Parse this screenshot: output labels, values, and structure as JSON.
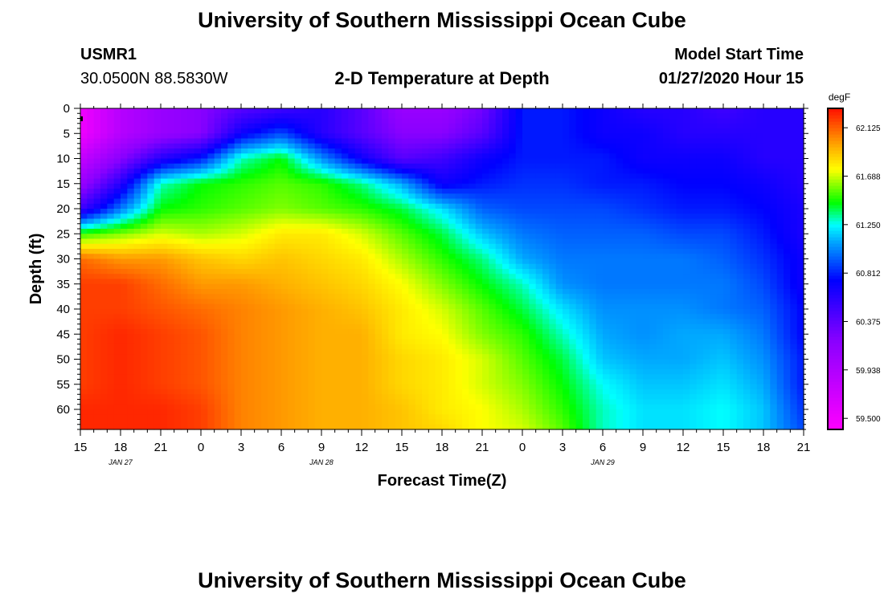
{
  "page": {
    "title_top": "University of Southern Mississippi Ocean Cube",
    "title_bottom": "University of Southern Mississippi Ocean Cube",
    "station": "USMR1",
    "location": "30.0500N 88.5830W",
    "product": "2-D Temperature at Depth",
    "model_start_label": "Model Start Time",
    "model_start_value": "01/27/2020 Hour 15"
  },
  "chart_data": {
    "type": "heatmap",
    "title": "2-D Temperature at Depth",
    "xlabel": "Forecast Time(Z)",
    "ylabel": "Depth (ft)",
    "x_unit": "hours from 01/27/2020 15Z",
    "x_ticks": [
      "15",
      "18",
      "21",
      "0",
      "3",
      "6",
      "9",
      "12",
      "15",
      "18",
      "21",
      "0",
      "3",
      "6",
      "9",
      "12",
      "15",
      "18",
      "21"
    ],
    "date_labels": [
      {
        "label": "JAN 27",
        "at_tick": 1
      },
      {
        "label": "JAN 28",
        "at_tick": 6
      },
      {
        "label": "JAN 29",
        "at_tick": 13
      }
    ],
    "xlim": [
      0,
      54
    ],
    "y_ticks": [
      0,
      5,
      10,
      15,
      20,
      25,
      30,
      35,
      40,
      45,
      50,
      55,
      60
    ],
    "ylim": [
      0,
      64
    ],
    "colorbar": {
      "unit": "degF",
      "ticks": [
        62.125,
        61.688,
        61.25,
        60.812,
        60.375,
        59.938,
        59.5
      ],
      "tick_labels": [
        "62.125",
        "61.688",
        "61.250",
        "60.812",
        "60.375",
        "59.938",
        "59.500"
      ],
      "range": [
        59.4,
        62.3
      ],
      "stops": [
        {
          "v": 59.4,
          "color": "#ff00ff"
        },
        {
          "v": 60.2,
          "color": "#8a00ff"
        },
        {
          "v": 60.75,
          "color": "#0000ff"
        },
        {
          "v": 61.1,
          "color": "#00a8ff"
        },
        {
          "v": 61.25,
          "color": "#00ffff"
        },
        {
          "v": 61.45,
          "color": "#00ff00"
        },
        {
          "v": 61.75,
          "color": "#ffff00"
        },
        {
          "v": 61.95,
          "color": "#ffb000"
        },
        {
          "v": 62.3,
          "color": "#ff1000"
        }
      ]
    },
    "field": {
      "x_nodes": [
        0,
        3,
        6,
        9,
        12,
        15,
        18,
        21,
        24,
        27,
        30,
        33,
        36,
        39,
        42,
        45,
        48,
        51,
        54
      ],
      "depth_nodes": [
        0,
        5,
        10,
        15,
        20,
        25,
        30,
        35,
        40,
        45,
        50,
        55,
        60,
        64
      ],
      "temperature_degF": [
        [
          59.5,
          59.9,
          60.1,
          60.2,
          60.4,
          60.5,
          60.6,
          60.4,
          60.1,
          60.1,
          60.3,
          60.8,
          60.8,
          60.7,
          60.6,
          60.6,
          60.5,
          60.6,
          60.6
        ],
        [
          59.5,
          59.9,
          60.1,
          60.2,
          60.7,
          60.9,
          60.6,
          60.4,
          60.2,
          60.2,
          60.4,
          60.8,
          60.8,
          60.7,
          60.7,
          60.6,
          60.6,
          60.6,
          60.6
        ],
        [
          59.8,
          60.2,
          60.6,
          60.8,
          61.3,
          61.45,
          61.05,
          60.7,
          60.4,
          60.5,
          60.7,
          60.8,
          60.8,
          60.8,
          60.7,
          60.7,
          60.7,
          60.6,
          60.6
        ],
        [
          60.1,
          60.6,
          61.3,
          61.45,
          61.5,
          61.55,
          61.5,
          61.35,
          61.1,
          60.7,
          60.8,
          60.85,
          60.85,
          60.8,
          60.8,
          60.75,
          60.75,
          60.7,
          60.6
        ],
        [
          60.5,
          61.0,
          61.45,
          61.5,
          61.55,
          61.6,
          61.55,
          61.5,
          61.4,
          61.2,
          60.95,
          60.9,
          60.9,
          60.9,
          60.85,
          60.8,
          60.8,
          60.75,
          60.65
        ],
        [
          61.5,
          61.6,
          61.7,
          61.65,
          61.7,
          61.8,
          61.8,
          61.7,
          61.55,
          61.4,
          61.15,
          61.0,
          60.95,
          60.95,
          60.95,
          60.9,
          60.9,
          60.8,
          60.65
        ],
        [
          62.1,
          62.0,
          62.0,
          61.9,
          61.85,
          61.9,
          61.85,
          61.8,
          61.65,
          61.5,
          61.35,
          61.1,
          61.0,
          61.0,
          61.0,
          61.0,
          60.95,
          60.85,
          60.7
        ],
        [
          62.2,
          62.2,
          62.1,
          62.0,
          62.0,
          61.95,
          61.9,
          61.85,
          61.75,
          61.6,
          61.45,
          61.3,
          61.05,
          61.0,
          61.0,
          61.0,
          61.0,
          60.9,
          60.7
        ],
        [
          62.2,
          62.2,
          62.15,
          62.1,
          62.05,
          62.0,
          61.95,
          61.9,
          61.8,
          61.7,
          61.55,
          61.4,
          61.2,
          61.05,
          61.05,
          61.05,
          61.0,
          60.95,
          60.75
        ],
        [
          62.2,
          62.25,
          62.2,
          62.15,
          62.05,
          62.0,
          61.95,
          61.95,
          61.8,
          61.75,
          61.6,
          61.5,
          61.3,
          61.1,
          61.05,
          61.1,
          61.1,
          61.0,
          60.75
        ],
        [
          62.2,
          62.25,
          62.2,
          62.15,
          62.05,
          62.0,
          61.95,
          61.95,
          61.85,
          61.8,
          61.7,
          61.55,
          61.4,
          61.15,
          61.1,
          61.1,
          61.15,
          61.05,
          60.8
        ],
        [
          62.2,
          62.25,
          62.2,
          62.15,
          62.05,
          62.0,
          61.95,
          61.95,
          61.85,
          61.8,
          61.7,
          61.6,
          61.45,
          61.25,
          61.15,
          61.15,
          61.2,
          61.1,
          60.8
        ],
        [
          62.25,
          62.25,
          62.25,
          62.2,
          62.05,
          62.0,
          61.95,
          61.95,
          61.9,
          61.8,
          61.75,
          61.65,
          61.5,
          61.3,
          61.2,
          61.2,
          61.25,
          61.15,
          60.85
        ],
        [
          62.25,
          62.25,
          62.25,
          62.2,
          62.05,
          62.0,
          61.95,
          61.95,
          61.9,
          61.85,
          61.75,
          61.7,
          61.55,
          61.3,
          61.2,
          61.2,
          61.25,
          61.15,
          60.9
        ]
      ]
    }
  }
}
